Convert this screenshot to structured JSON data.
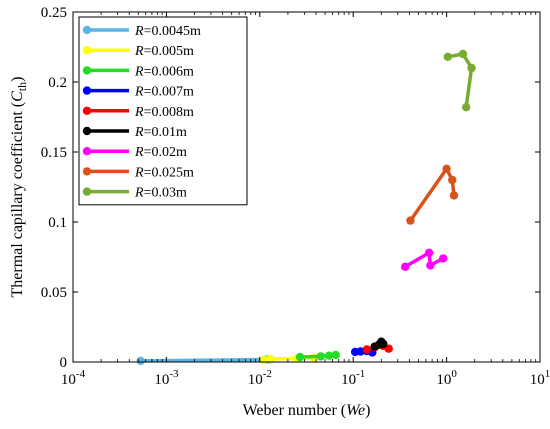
{
  "chart_data": {
    "type": "line",
    "title": "",
    "xlabel": {
      "text": "Weber number (",
      "sym": "We",
      "tail": ")"
    },
    "ylabel": {
      "text": "Thermal capillary coefficient (",
      "sym": "C",
      "sub": "th",
      "tail": ")"
    },
    "xscale": "log",
    "xlim": [
      0.0001,
      10
    ],
    "ylim": [
      0,
      0.25
    ],
    "xticks": [
      0.0001,
      0.001,
      0.01,
      0.1,
      1,
      10
    ],
    "xtick_labels": [
      {
        "base": "10",
        "exp": "-4"
      },
      {
        "base": "10",
        "exp": "-3"
      },
      {
        "base": "10",
        "exp": "-2"
      },
      {
        "base": "10",
        "exp": "-1"
      },
      {
        "base": "10",
        "exp": "0"
      },
      {
        "base": "10",
        "exp": "1"
      }
    ],
    "yticks": [
      0,
      0.05,
      0.1,
      0.15,
      0.2,
      0.25
    ],
    "ytick_labels": [
      "0",
      "0.05",
      "0.1",
      "0.15",
      "0.2",
      "0.25"
    ],
    "grid": false,
    "legend_position": "top-left",
    "series": [
      {
        "name": "R=0.0045m",
        "label_var": "R",
        "label_val": "=0.0045m",
        "color": "#5ab4e6",
        "points": [
          [
            0.00053,
            0.0008
          ],
          [
            0.012,
            0.0018
          ],
          [
            0.013,
            0.002
          ]
        ]
      },
      {
        "name": "R=0.005m",
        "label_var": "R",
        "label_val": "=0.005m",
        "color": "#ffff00",
        "points": [
          [
            0.011,
            0.0015
          ],
          [
            0.013,
            0.0022
          ],
          [
            0.025,
            0.0025
          ],
          [
            0.038,
            0.003
          ]
        ]
      },
      {
        "name": "R=0.006m",
        "label_var": "R",
        "label_val": "=0.006m",
        "color": "#22dd22",
        "points": [
          [
            0.027,
            0.0035
          ],
          [
            0.045,
            0.004
          ],
          [
            0.055,
            0.0045
          ],
          [
            0.065,
            0.005
          ]
        ]
      },
      {
        "name": "R=0.007m",
        "label_var": "R",
        "label_val": "=0.007m",
        "color": "#0000ff",
        "points": [
          [
            0.105,
            0.0072
          ],
          [
            0.12,
            0.0075
          ],
          [
            0.14,
            0.0078
          ],
          [
            0.16,
            0.0068
          ]
        ]
      },
      {
        "name": "R=0.008m",
        "label_var": "R",
        "label_val": "=0.008m",
        "color": "#ff0000",
        "points": [
          [
            0.14,
            0.009
          ],
          [
            0.17,
            0.0105
          ],
          [
            0.21,
            0.0115
          ],
          [
            0.24,
            0.0095
          ]
        ]
      },
      {
        "name": "R=0.01m",
        "label_var": "R",
        "label_val": "=0.01m",
        "color": "#000000",
        "points": [
          [
            0.17,
            0.011
          ],
          [
            0.19,
            0.0125
          ],
          [
            0.2,
            0.0145
          ],
          [
            0.21,
            0.013
          ]
        ]
      },
      {
        "name": "R=0.02m",
        "label_var": "R",
        "label_val": "=0.02m",
        "color": "#ff00ff",
        "points": [
          [
            0.36,
            0.068
          ],
          [
            0.65,
            0.078
          ],
          [
            0.67,
            0.069
          ],
          [
            0.92,
            0.074
          ]
        ]
      },
      {
        "name": "R=0.025m",
        "label_var": "R",
        "label_val": "=0.025m",
        "color": "#d95319",
        "points": [
          [
            0.41,
            0.101
          ],
          [
            1.0,
            0.138
          ],
          [
            1.15,
            0.13
          ],
          [
            1.2,
            0.119
          ]
        ]
      },
      {
        "name": "R=0.03m",
        "label_var": "R",
        "label_val": "=0.03m",
        "color": "#77ac30",
        "points": [
          [
            1.03,
            0.218
          ],
          [
            1.5,
            0.22
          ],
          [
            1.85,
            0.21
          ],
          [
            1.62,
            0.182
          ]
        ]
      }
    ]
  }
}
